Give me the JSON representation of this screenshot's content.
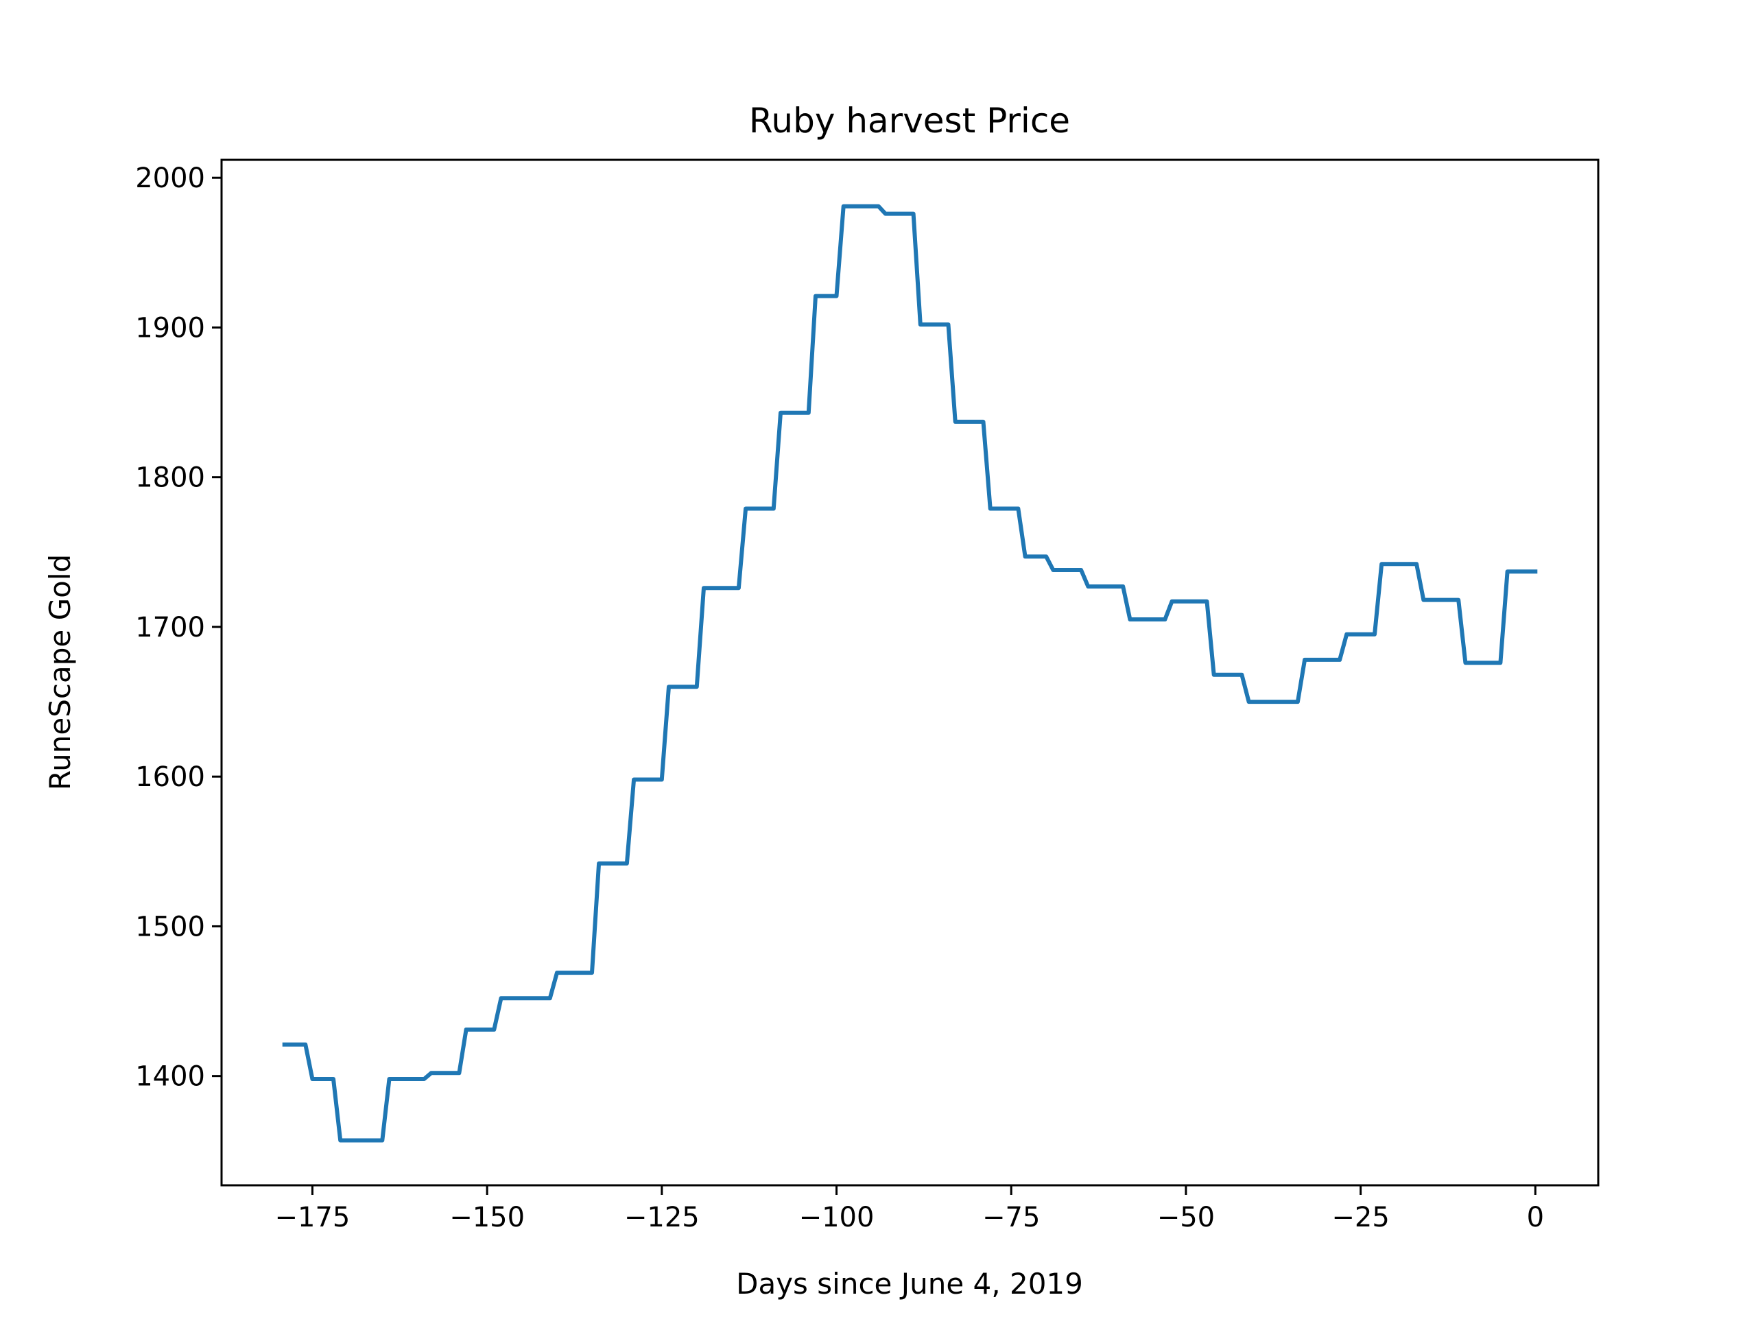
{
  "chart_data": {
    "type": "line",
    "title": "Ruby harvest Price",
    "xlabel": "Days since June 4, 2019",
    "ylabel": "RuneScape Gold",
    "xlim": [
      -188,
      9
    ],
    "ylim": [
      1327,
      2012
    ],
    "xticks": [
      -175,
      -150,
      -125,
      -100,
      -75,
      -50,
      -25,
      0
    ],
    "yticks": [
      1400,
      1500,
      1600,
      1700,
      1800,
      1900,
      2000
    ],
    "xtick_labels": [
      "−175",
      "−150",
      "−125",
      "−100",
      "−75",
      "−50",
      "−25",
      "0"
    ],
    "ytick_labels": [
      "1400",
      "1500",
      "1600",
      "1700",
      "1800",
      "1900",
      "2000"
    ],
    "grid": false,
    "series": [
      {
        "color": "#1f77b4",
        "x": [
          -179,
          -176,
          -175,
          -172,
          -171,
          -165,
          -164,
          -159,
          -158,
          -154,
          -153,
          -149,
          -148,
          -141,
          -140,
          -135,
          -134,
          -130,
          -129,
          -125,
          -124,
          -120,
          -119,
          -114,
          -113,
          -109,
          -108,
          -104,
          -103,
          -100,
          -99,
          -94,
          -93,
          -89,
          -88,
          -84,
          -83,
          -79,
          -78,
          -74,
          -73,
          -70,
          -69,
          -65,
          -64,
          -59,
          -58,
          -53,
          -52,
          -47,
          -46,
          -42,
          -41,
          -34,
          -33,
          -28,
          -27,
          -23,
          -22,
          -17,
          -16,
          -11,
          -10,
          -5,
          -4,
          0
        ],
        "y": [
          1421,
          1421,
          1398,
          1398,
          1357,
          1357,
          1398,
          1398,
          1402,
          1402,
          1431,
          1431,
          1452,
          1452,
          1469,
          1469,
          1542,
          1542,
          1598,
          1598,
          1660,
          1660,
          1726,
          1726,
          1779,
          1779,
          1843,
          1843,
          1921,
          1921,
          1981,
          1981,
          1976,
          1976,
          1902,
          1902,
          1837,
          1837,
          1779,
          1779,
          1747,
          1747,
          1738,
          1738,
          1727,
          1727,
          1705,
          1705,
          1717,
          1717,
          1668,
          1668,
          1650,
          1650,
          1678,
          1678,
          1695,
          1695,
          1742,
          1742,
          1718,
          1718,
          1676,
          1676,
          1737,
          1737
        ]
      }
    ]
  }
}
